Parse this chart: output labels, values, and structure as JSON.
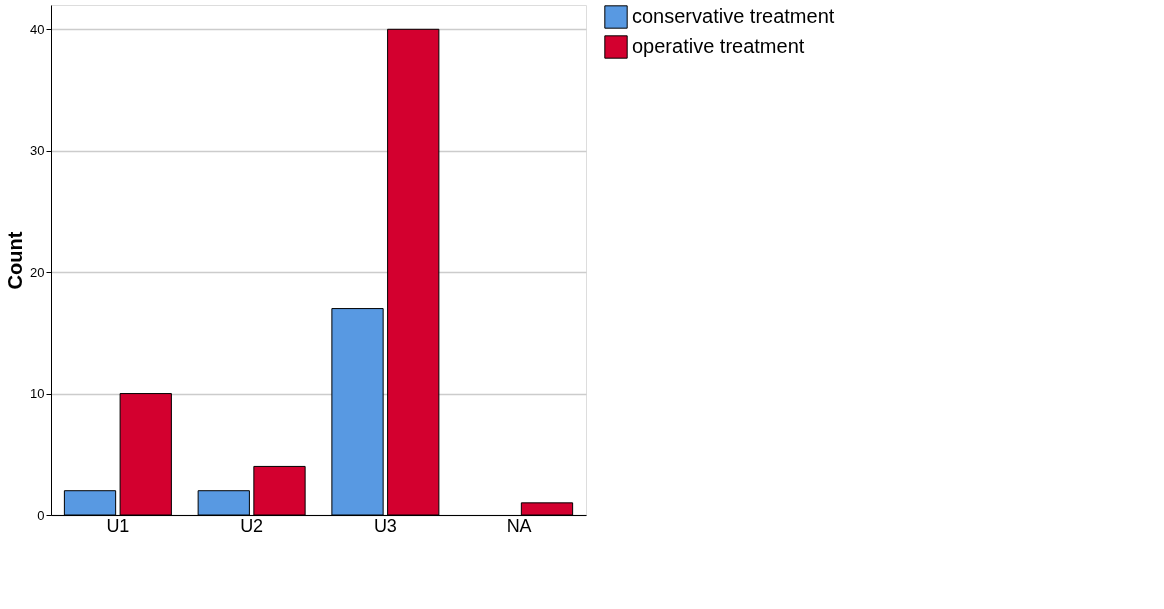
{
  "chart_data": {
    "type": "bar",
    "ylabel": "Count",
    "categories": [
      "U1",
      "U2",
      "U3",
      "NA"
    ],
    "series": [
      {
        "name": "conservative treatment",
        "color": "#5899e2",
        "values": [
          2,
          2,
          17,
          null
        ]
      },
      {
        "name": "operative treatment",
        "color": "#d3002f",
        "values": [
          10,
          4,
          40,
          1
        ]
      }
    ],
    "ylim": [
      0,
      42
    ],
    "yticks": [
      0,
      10,
      20,
      30,
      40
    ],
    "grid": "y",
    "legend": "top right"
  }
}
